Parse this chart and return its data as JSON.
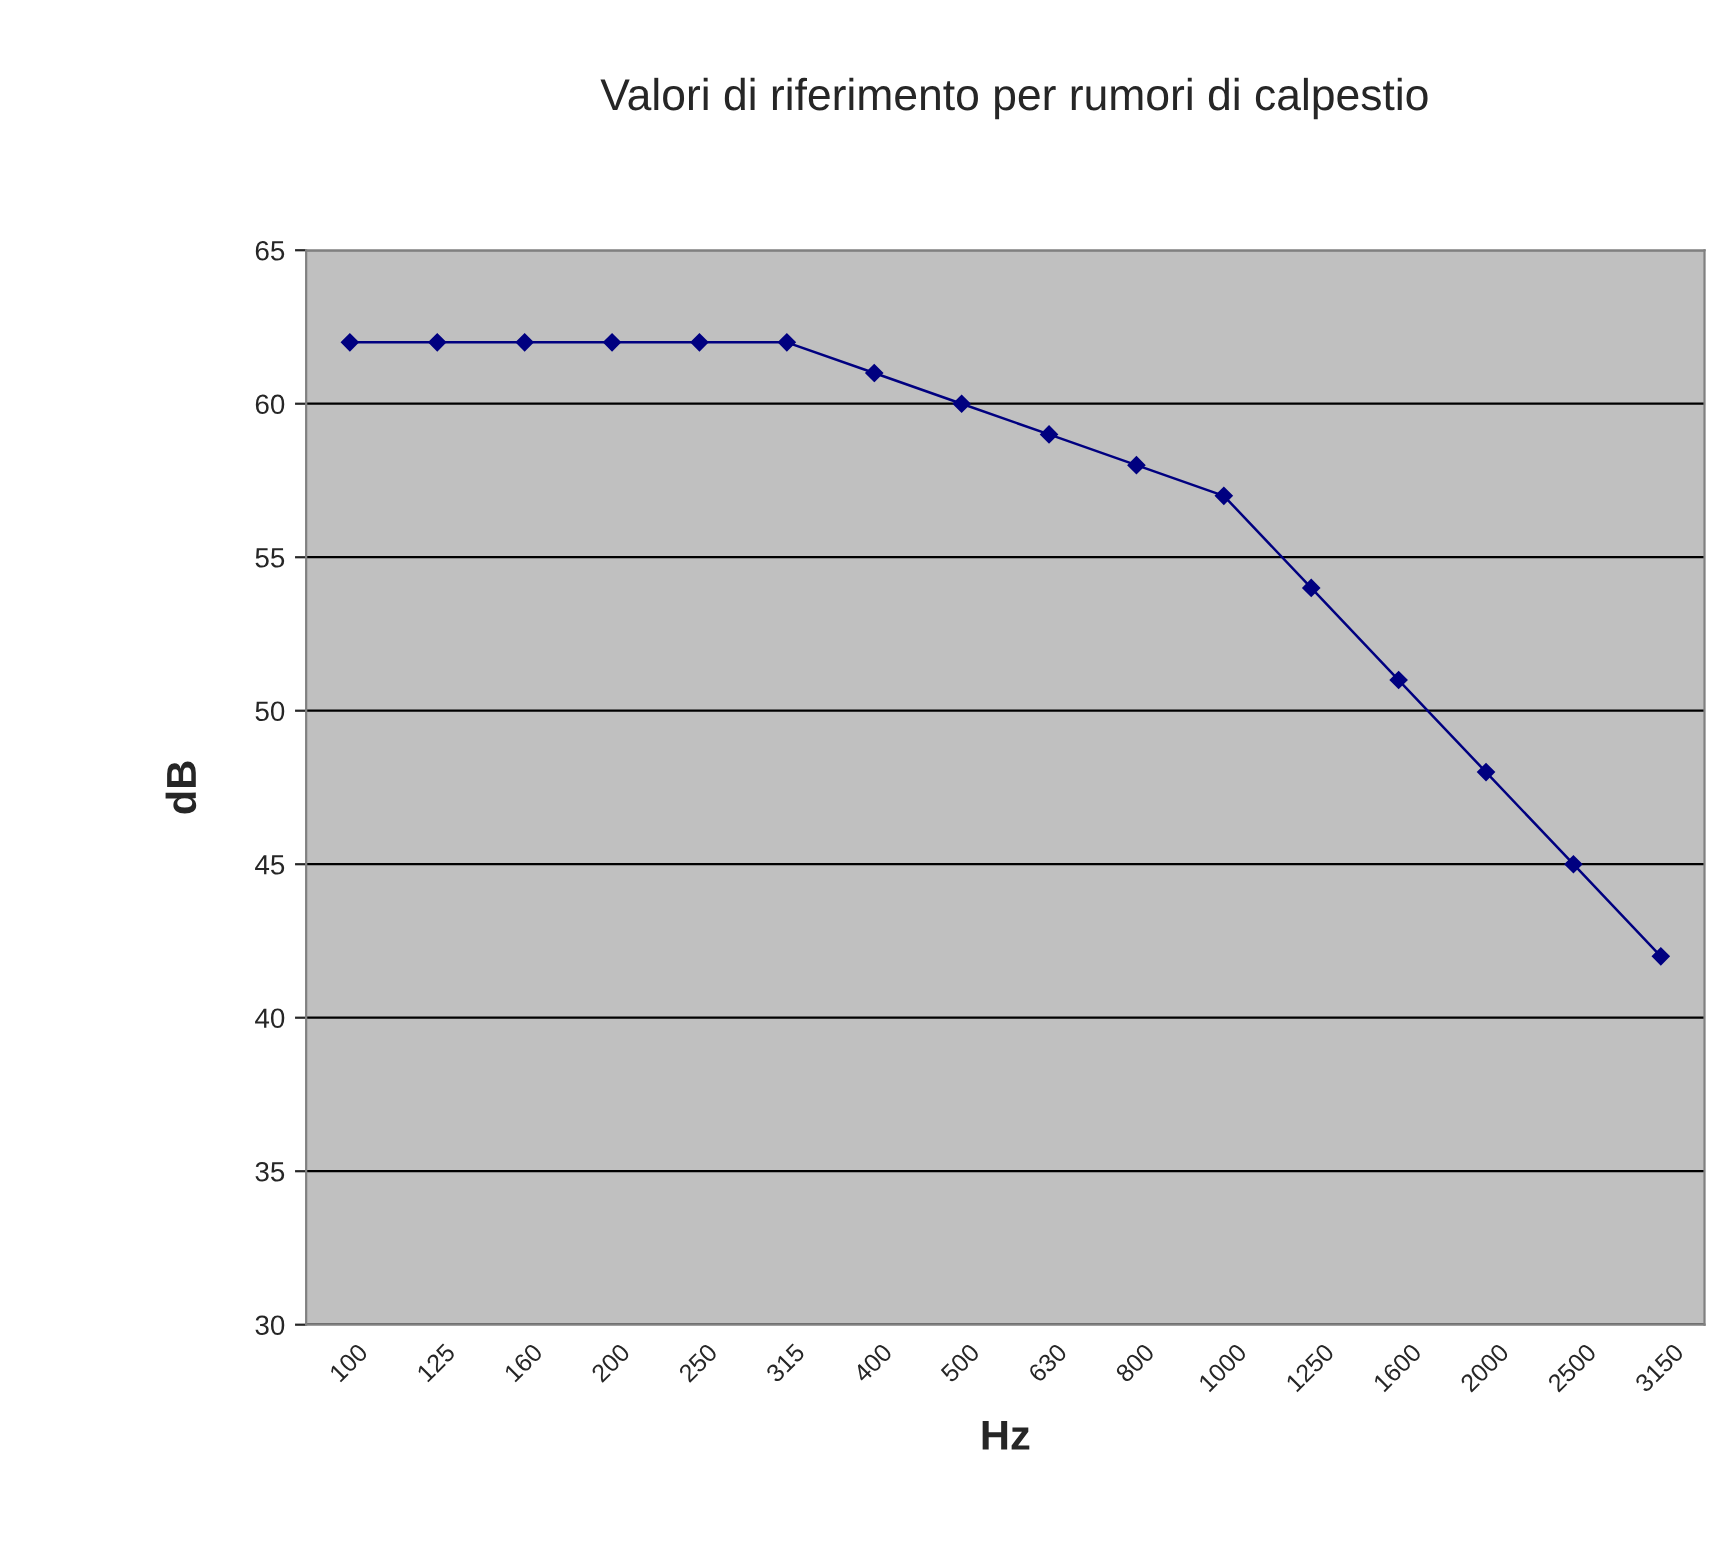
{
  "chart_data": {
    "type": "line",
    "title": "Valori di riferimento per rumori di calpestio",
    "xlabel": "Hz",
    "ylabel": "dB",
    "categories": [
      "100",
      "125",
      "160",
      "200",
      "250",
      "315",
      "400",
      "500",
      "630",
      "800",
      "1000",
      "1250",
      "1600",
      "2000",
      "2500",
      "3150"
    ],
    "series": [
      {
        "color": "#000080",
        "values": [
          62,
          62,
          62,
          62,
          62,
          62,
          61,
          60,
          59,
          58,
          57,
          54,
          51,
          48,
          45,
          42
        ]
      }
    ],
    "ylim": [
      30,
      65
    ],
    "yticks": [
      30,
      35,
      40,
      45,
      50,
      55,
      60,
      65
    ],
    "grid": "y",
    "marker": "diamond",
    "line_style": "solid"
  }
}
